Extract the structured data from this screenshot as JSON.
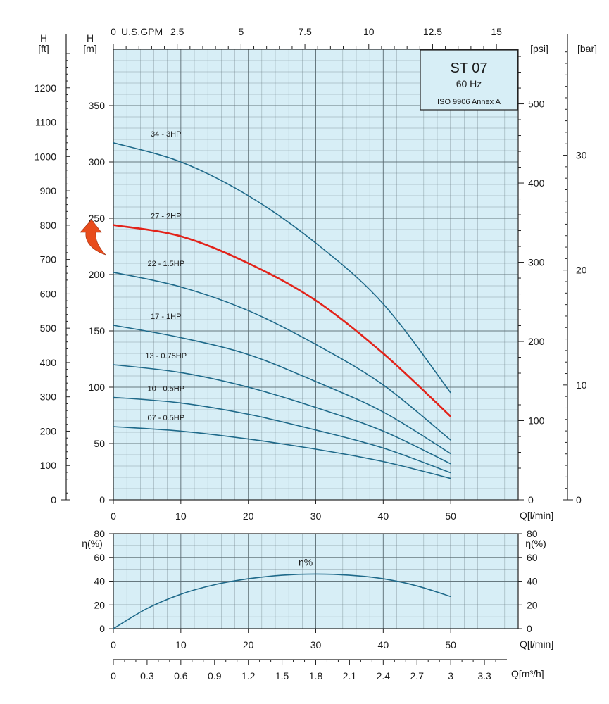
{
  "chart_data": {
    "type": "line",
    "title": "ST 07",
    "subtitle": "60 Hz",
    "standard": "ISO 9906 Annex A",
    "colors": {
      "background": "#d7eef6",
      "grid": "#5a6a72",
      "curve": "#1f6a8a",
      "highlight": "#e2231a",
      "arrow": "#e84c1c"
    },
    "head": {
      "x_label": "Q[l/min]",
      "x_ticks": [
        0,
        10,
        20,
        30,
        40,
        50
      ],
      "xlim": [
        0,
        60
      ],
      "y_label": "H",
      "y_unit": "[m]",
      "y_ticks": [
        0,
        50,
        100,
        150,
        200,
        250,
        300,
        350
      ],
      "ylim": [
        0,
        400
      ],
      "ft_label": "H",
      "ft_unit": "[ft]",
      "ft_ticks": [
        0,
        100,
        200,
        300,
        400,
        500,
        600,
        700,
        800,
        900,
        1000,
        1100,
        1200
      ],
      "psi_unit": "[psi]",
      "psi_ticks": [
        0,
        100,
        200,
        300,
        400,
        500
      ],
      "bar_unit": "[bar]",
      "bar_ticks": [
        0,
        10,
        20,
        30
      ],
      "gpm_label": "U.S.GPM",
      "gpm_ticks": [
        "0",
        "2.5",
        "5",
        "7.5",
        "10",
        "12.5",
        "15"
      ],
      "gpm_values": [
        0,
        2.5,
        5,
        7.5,
        10,
        12.5,
        15
      ],
      "highlight_arrow_at_m": 232,
      "series": [
        {
          "name": "34 - 3HP",
          "highlight": false,
          "x": [
            0,
            10,
            20,
            30,
            40,
            50
          ],
          "values": [
            317,
            300,
            270,
            228,
            174,
            95
          ]
        },
        {
          "name": "27 - 2HP",
          "highlight": true,
          "x": [
            0,
            10,
            20,
            30,
            40,
            50
          ],
          "values": [
            244,
            234,
            210,
            177,
            130,
            74
          ]
        },
        {
          "name": "22 - 1.5HP",
          "highlight": false,
          "x": [
            0,
            10,
            20,
            30,
            40,
            50
          ],
          "values": [
            202,
            189,
            168,
            138,
            102,
            53
          ]
        },
        {
          "name": "17 - 1HP",
          "highlight": false,
          "x": [
            0,
            10,
            20,
            30,
            40,
            50
          ],
          "values": [
            155,
            144,
            129,
            105,
            78,
            41
          ]
        },
        {
          "name": "13 - 0.75HP",
          "highlight": false,
          "x": [
            0,
            10,
            20,
            30,
            40,
            50
          ],
          "values": [
            120,
            113,
            100,
            82,
            61,
            32
          ]
        },
        {
          "name": "10 - 0.5HP",
          "highlight": false,
          "x": [
            0,
            10,
            20,
            30,
            40,
            50
          ],
          "values": [
            91,
            86,
            76,
            62,
            46,
            24
          ]
        },
        {
          "name": "07 - 0.5HP",
          "highlight": false,
          "x": [
            0,
            10,
            20,
            30,
            40,
            50
          ],
          "values": [
            65,
            61,
            54,
            45,
            34,
            19
          ]
        }
      ]
    },
    "efficiency": {
      "x_label": "Q[l/min]",
      "x_ticks": [
        0,
        10,
        20,
        30,
        40,
        50
      ],
      "xlim": [
        0,
        60
      ],
      "y_label": "η(%)",
      "y_ticks": [
        0,
        20,
        40,
        60,
        80
      ],
      "ylim": [
        0,
        80
      ],
      "series": [
        {
          "name": "η%",
          "x": [
            0,
            5,
            10,
            15,
            20,
            25,
            30,
            35,
            40,
            45,
            50
          ],
          "values": [
            0,
            17,
            29,
            37,
            42,
            45,
            46,
            45,
            42,
            36,
            27
          ]
        }
      ]
    },
    "flow_m3h": {
      "x_label": "Q[m³/h]",
      "ticks": [
        "0",
        "0.3",
        "0.6",
        "0.9",
        "1.2",
        "1.5",
        "1.8",
        "2.1",
        "2.4",
        "2.7",
        "3",
        "3.3"
      ],
      "tick_values": [
        0,
        0.3,
        0.6,
        0.9,
        1.2,
        1.5,
        1.8,
        2.1,
        2.4,
        2.7,
        3,
        3.3
      ]
    }
  }
}
